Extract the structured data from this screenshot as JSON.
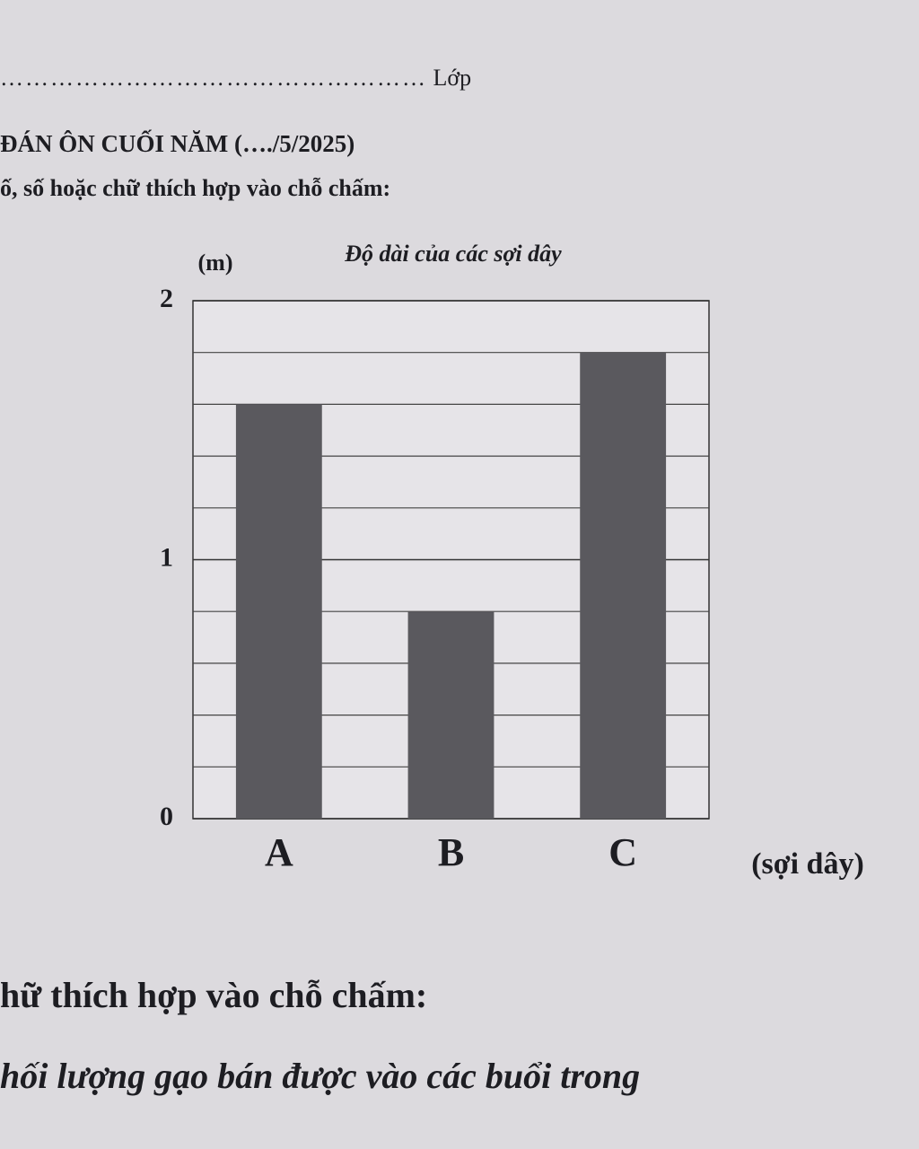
{
  "header": {
    "class_label": "Lớp",
    "title": "ĐÁN ÔN CUỐI NĂM (…./5/2025)",
    "instruction": "ố, số hoặc chữ thích hợp vào chỗ chấm:"
  },
  "chart_data": {
    "type": "bar",
    "title": "Độ dài của các sợi dây",
    "y_label": "(m)",
    "x_label": "(sợi dây)",
    "categories": [
      "A",
      "B",
      "C"
    ],
    "values": [
      1.6,
      0.8,
      1.8
    ],
    "color": "#5a595e",
    "ylim": [
      0,
      2
    ],
    "yticks": [
      0,
      1,
      2
    ],
    "minor_yticks": [
      0.2,
      0.4,
      0.6,
      0.8,
      1.2,
      1.4,
      1.6,
      1.8
    ],
    "grid": true
  },
  "footer": {
    "heading": "hữ thích hợp vào chỗ chấm:",
    "text": "hối lượng gạo bán được vào các buổi trong"
  }
}
